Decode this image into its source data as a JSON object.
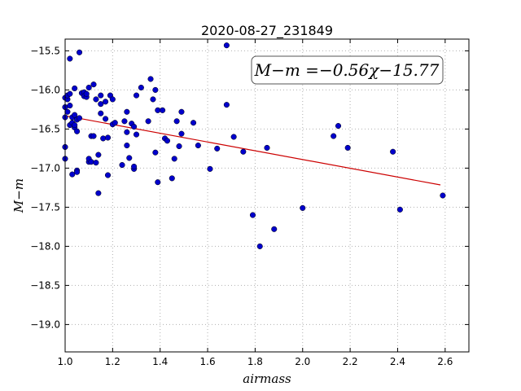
{
  "chart_data": {
    "type": "scatter",
    "title": "2020-08-27_231849",
    "xlabel": "airmass",
    "ylabel": "M−m",
    "xlim": [
      1.0,
      2.7
    ],
    "ylim": [
      -19.35,
      -15.35
    ],
    "y_inverted": true,
    "grid": true,
    "x_ticks": [
      1.0,
      1.2,
      1.4,
      1.6,
      1.8,
      2.0,
      2.2,
      2.4,
      2.6
    ],
    "x_tick_labels": [
      "1.0",
      "1.2",
      "1.4",
      "1.6",
      "1.8",
      "2.0",
      "2.2",
      "2.4",
      "2.6"
    ],
    "y_ticks": [
      -15.5,
      -16.0,
      -16.5,
      -17.0,
      -17.5,
      -18.0,
      -18.5,
      -19.0
    ],
    "y_tick_labels": [
      "−15.5",
      "−16.0",
      "−16.5",
      "−17.0",
      "−17.5",
      "−18.0",
      "−18.5",
      "−19.0"
    ],
    "annotation": "M−m =−0.56χ−15.77",
    "point_color": "#0000cc",
    "fit_color": "#cc0000",
    "fit": {
      "slope": -0.56,
      "intercept": -15.77,
      "x_range": [
        1.0,
        2.58
      ]
    },
    "x": [
      1.0,
      1.0,
      1.0,
      1.0,
      1.0,
      1.01,
      1.01,
      1.01,
      1.02,
      1.02,
      1.02,
      1.02,
      1.03,
      1.03,
      1.03,
      1.04,
      1.04,
      1.04,
      1.04,
      1.05,
      1.05,
      1.05,
      1.05,
      1.06,
      1.06,
      1.07,
      1.08,
      1.08,
      1.09,
      1.09,
      1.1,
      1.1,
      1.1,
      1.11,
      1.11,
      1.12,
      1.12,
      1.13,
      1.13,
      1.14,
      1.14,
      1.15,
      1.15,
      1.15,
      1.16,
      1.17,
      1.17,
      1.18,
      1.18,
      1.19,
      1.2,
      1.2,
      1.21,
      1.24,
      1.25,
      1.26,
      1.26,
      1.26,
      1.27,
      1.28,
      1.29,
      1.29,
      1.29,
      1.3,
      1.3,
      1.32,
      1.35,
      1.36,
      1.37,
      1.38,
      1.38,
      1.39,
      1.39,
      1.41,
      1.42,
      1.43,
      1.45,
      1.46,
      1.47,
      1.48,
      1.49,
      1.49,
      1.54,
      1.56,
      1.61,
      1.64,
      1.68,
      1.68,
      1.71,
      1.75,
      1.79,
      1.82,
      1.85,
      1.88,
      2.0,
      2.13,
      2.15,
      2.19,
      2.38,
      2.41,
      2.59
    ],
    "y": [
      -16.1,
      -16.22,
      -16.35,
      -16.73,
      -16.88,
      -16.12,
      -16.28,
      -16.07,
      -16.05,
      -16.2,
      -15.6,
      -16.45,
      -16.42,
      -16.35,
      -17.08,
      -15.98,
      -16.32,
      -16.48,
      -16.45,
      -16.38,
      -16.53,
      -17.03,
      -17.05,
      -15.52,
      -16.36,
      -16.04,
      -16.03,
      -16.08,
      -16.09,
      -16.05,
      -15.97,
      -16.92,
      -16.88,
      -16.59,
      -16.92,
      -15.93,
      -16.59,
      -16.12,
      -16.93,
      -16.83,
      -17.32,
      -16.3,
      -16.07,
      -16.18,
      -16.62,
      -16.15,
      -16.37,
      -16.61,
      -17.09,
      -16.07,
      -16.44,
      -16.12,
      -16.42,
      -16.96,
      -16.4,
      -16.54,
      -16.71,
      -16.28,
      -16.87,
      -16.43,
      -17.01,
      -16.98,
      -16.47,
      -16.07,
      -16.57,
      -15.97,
      -16.4,
      -15.86,
      -16.12,
      -16.0,
      -16.8,
      -17.18,
      -16.26,
      -16.26,
      -16.62,
      -16.65,
      -17.13,
      -16.88,
      -16.4,
      -16.72,
      -16.28,
      -16.56,
      -16.42,
      -16.71,
      -17.01,
      -16.75,
      -15.43,
      -16.19,
      -16.6,
      -16.79,
      -17.6,
      -18.0,
      -16.74,
      -17.78,
      -17.51,
      -16.59,
      -16.46,
      -16.74,
      -16.79,
      -17.53,
      -17.35
    ]
  }
}
